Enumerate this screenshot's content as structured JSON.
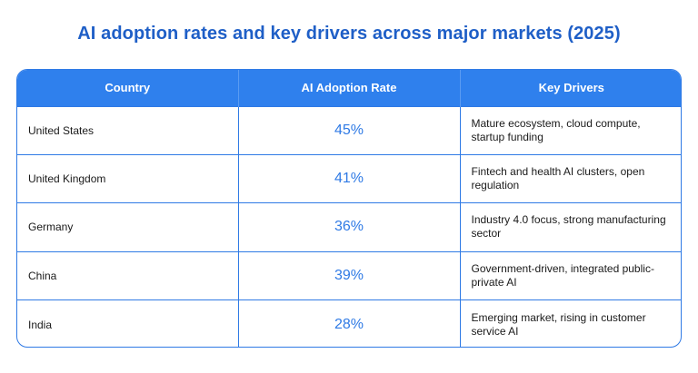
{
  "title": "AI adoption rates and key drivers across major markets (2025)",
  "table": {
    "headers": [
      "Country",
      "AI Adoption Rate",
      "Key Drivers"
    ],
    "rows": [
      {
        "country": "United States",
        "rate": "45%",
        "drivers": "Mature ecosystem, cloud compute, startup funding"
      },
      {
        "country": "United Kingdom",
        "rate": "41%",
        "drivers": "Fintech and health AI clusters, open regulation"
      },
      {
        "country": "Germany",
        "rate": "36%",
        "drivers": "Industry 4.0 focus, strong manufacturing sector"
      },
      {
        "country": "China",
        "rate": "39%",
        "drivers": "Government-driven, integrated public-private AI"
      },
      {
        "country": "India",
        "rate": "28%",
        "drivers": "Emerging market, rising in customer service AI"
      }
    ]
  },
  "colors": {
    "accent": "#2f80ed",
    "title": "#1f5fc7"
  }
}
